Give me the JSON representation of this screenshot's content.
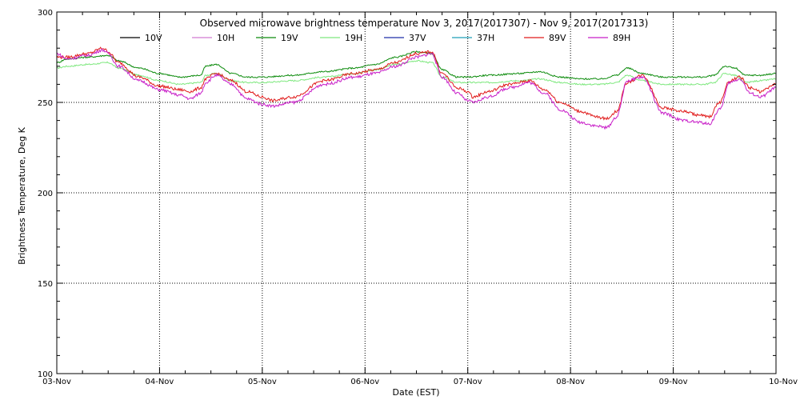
{
  "chart_data": {
    "type": "line",
    "title": "Observed microwave brightness temperature Nov  3, 2017(2017307) - Nov  9, 2017(2017313)",
    "xlabel": "Date (EST)",
    "ylabel": "Brightness Temperature, Deg K",
    "xlim": [
      0,
      7
    ],
    "ylim": [
      100,
      300
    ],
    "yticks": [
      100,
      150,
      200,
      250,
      300
    ],
    "xticks": [
      0,
      1,
      2,
      3,
      4,
      5,
      6,
      7
    ],
    "xtick_labels": [
      "03-Nov",
      "04-Nov",
      "05-Nov",
      "06-Nov",
      "07-Nov",
      "08-Nov",
      "09-Nov",
      "10-Nov"
    ],
    "grid": true,
    "legend_position": "top",
    "series": [
      {
        "name": "10V",
        "color": "#000000",
        "x": [],
        "y": []
      },
      {
        "name": "10H",
        "color": "#d27ad2",
        "x": [],
        "y": []
      },
      {
        "name": "19V",
        "color": "#0a8a0a",
        "x": [
          0,
          0.1,
          0.3,
          0.5,
          0.6,
          0.8,
          1.0,
          1.2,
          1.4,
          1.45,
          1.55,
          1.7,
          1.85,
          2.0,
          2.3,
          2.6,
          2.9,
          3.1,
          3.3,
          3.5,
          3.65,
          3.75,
          3.9,
          4.0,
          4.2,
          4.5,
          4.7,
          4.9,
          5.1,
          5.3,
          5.45,
          5.55,
          5.7,
          5.9,
          6.0,
          6.2,
          6.3,
          6.4,
          6.5,
          6.6,
          6.7,
          6.85,
          7.0
        ],
        "y": [
          272,
          274,
          275,
          276,
          273,
          269,
          266,
          264,
          265,
          270,
          271,
          266,
          264,
          264,
          265,
          267,
          269,
          271,
          275,
          278,
          277,
          268,
          264,
          264,
          265,
          266,
          267,
          264,
          263,
          263,
          265,
          269,
          266,
          264,
          264,
          264,
          264,
          265,
          270,
          269,
          265,
          265,
          266
        ]
      },
      {
        "name": "19H",
        "color": "#7ee87e",
        "x": [
          0,
          0.1,
          0.3,
          0.5,
          0.6,
          0.8,
          1.0,
          1.2,
          1.4,
          1.45,
          1.55,
          1.7,
          1.85,
          2.0,
          2.3,
          2.6,
          2.9,
          3.1,
          3.3,
          3.5,
          3.65,
          3.75,
          3.9,
          4.0,
          4.2,
          4.5,
          4.7,
          4.9,
          5.1,
          5.3,
          5.45,
          5.55,
          5.7,
          5.9,
          6.0,
          6.2,
          6.3,
          6.4,
          6.5,
          6.6,
          6.7,
          6.85,
          7.0
        ],
        "y": [
          269,
          270,
          271,
          272,
          269,
          265,
          262,
          260,
          261,
          265,
          266,
          262,
          261,
          261,
          262,
          264,
          266,
          268,
          271,
          273,
          272,
          264,
          261,
          261,
          261,
          262,
          263,
          261,
          260,
          260,
          261,
          265,
          262,
          260,
          260,
          260,
          260,
          261,
          266,
          265,
          261,
          262,
          263
        ]
      },
      {
        "name": "37V",
        "color": "#1f2fa8",
        "x": [],
        "y": []
      },
      {
        "name": "37H",
        "color": "#1f9fb8",
        "x": [],
        "y": []
      },
      {
        "name": "89V",
        "color": "#e01a1a",
        "x": [
          0,
          0.1,
          0.3,
          0.45,
          0.5,
          0.6,
          0.8,
          1.0,
          1.2,
          1.3,
          1.4,
          1.45,
          1.55,
          1.7,
          1.85,
          2.0,
          2.1,
          2.3,
          2.6,
          2.9,
          3.1,
          3.3,
          3.5,
          3.65,
          3.75,
          3.9,
          4.0,
          4.05,
          4.2,
          4.4,
          4.6,
          4.75,
          4.9,
          5.1,
          5.25,
          5.35,
          5.45,
          5.55,
          5.7,
          5.9,
          6.1,
          6.25,
          6.35,
          6.45,
          6.55,
          6.65,
          6.75,
          6.85,
          7.0
        ],
        "y": [
          275,
          275,
          277,
          280,
          278,
          272,
          264,
          259,
          257,
          256,
          258,
          263,
          266,
          262,
          256,
          253,
          251,
          253,
          262,
          266,
          268,
          272,
          277,
          278,
          266,
          258,
          256,
          253,
          256,
          260,
          262,
          257,
          250,
          245,
          242,
          241,
          245,
          261,
          265,
          247,
          245,
          243,
          242,
          250,
          262,
          264,
          258,
          256,
          260
        ]
      },
      {
        "name": "89H",
        "color": "#c81ec8",
        "x": [
          0,
          0.1,
          0.3,
          0.45,
          0.5,
          0.6,
          0.8,
          1.0,
          1.2,
          1.3,
          1.4,
          1.45,
          1.55,
          1.7,
          1.85,
          2.0,
          2.1,
          2.3,
          2.6,
          2.9,
          3.1,
          3.3,
          3.5,
          3.65,
          3.75,
          3.9,
          4.0,
          4.05,
          4.2,
          4.4,
          4.6,
          4.75,
          4.9,
          5.1,
          5.25,
          5.35,
          5.45,
          5.55,
          5.7,
          5.9,
          6.1,
          6.25,
          6.35,
          6.45,
          6.55,
          6.65,
          6.75,
          6.85,
          7.0
        ],
        "y": [
          277,
          274,
          276,
          279,
          277,
          270,
          262,
          257,
          254,
          252,
          255,
          261,
          265,
          260,
          252,
          249,
          248,
          250,
          260,
          264,
          266,
          270,
          275,
          277,
          264,
          255,
          251,
          250,
          253,
          258,
          261,
          255,
          246,
          239,
          237,
          236,
          242,
          262,
          264,
          244,
          240,
          239,
          238,
          246,
          261,
          263,
          255,
          253,
          258
        ]
      }
    ]
  }
}
